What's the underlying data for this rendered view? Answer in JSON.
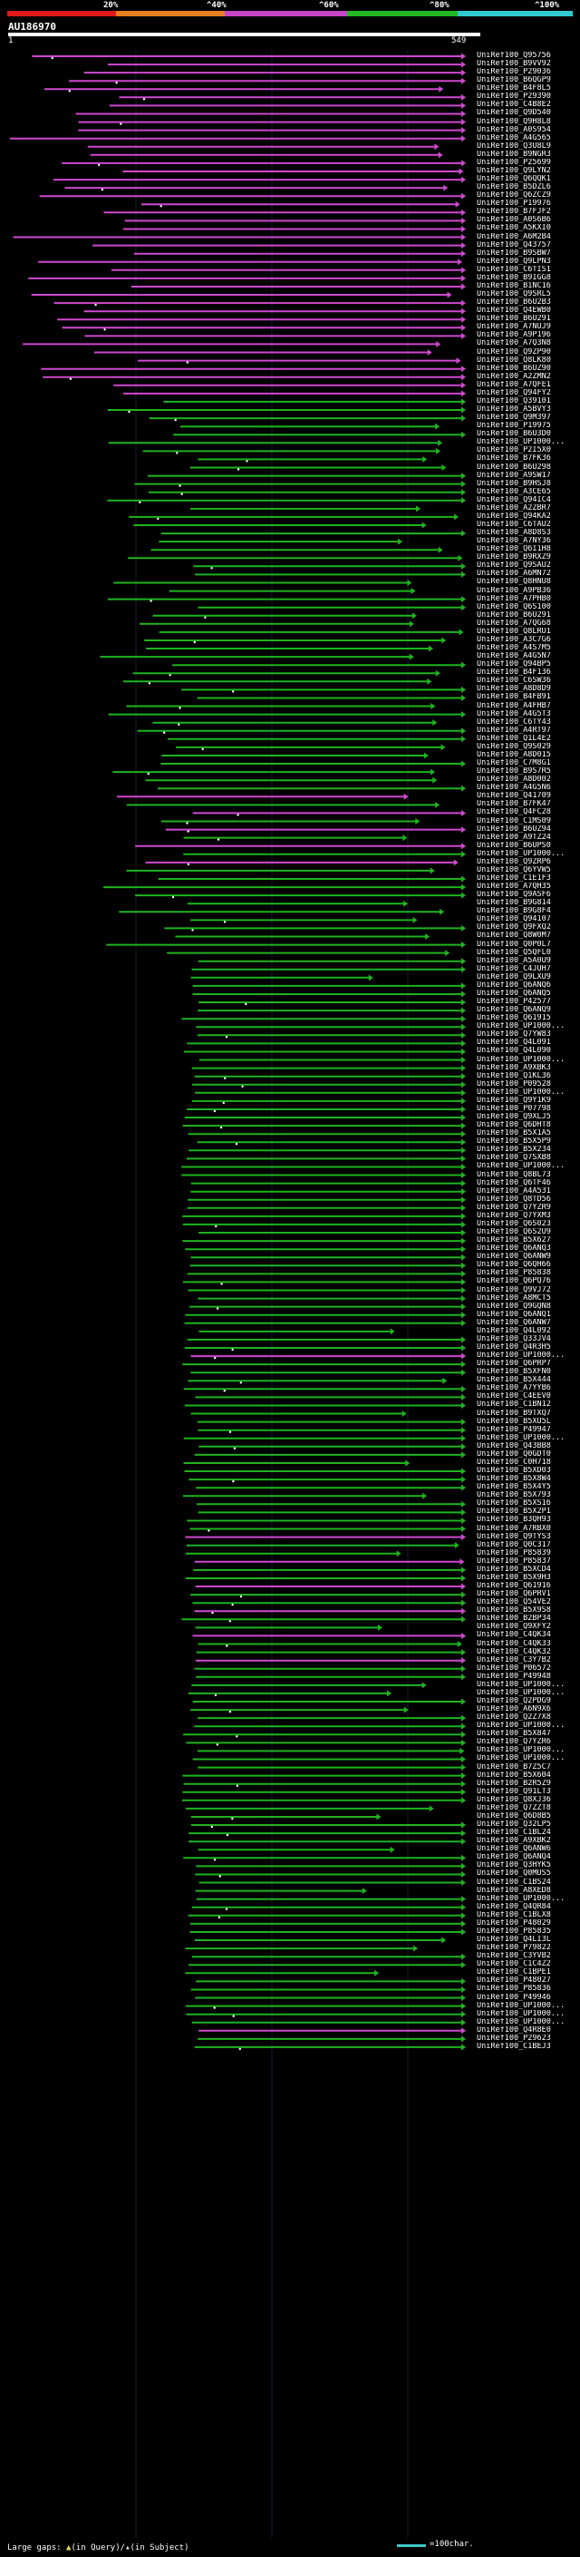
{
  "legend": {
    "labels": [
      "20%",
      "^40%",
      "^60%",
      "^80%",
      "^100%"
    ],
    "colors": [
      "#e01818",
      "#e87f1e",
      "#c844c8",
      "#22b822",
      "#2fcbd0"
    ]
  },
  "query": {
    "name": "AU186970",
    "start": "1",
    "end": "549"
  },
  "colors": {
    "pink": "#d048d0",
    "green": "#1eb41e",
    "background": "#000000"
  },
  "hits": [
    "UniRef100_Q95756",
    "UniRef100_B9VV92",
    "UniRef100_P29036",
    "UniRef100_B6QGP9",
    "UniRef100_B4F8L5",
    "UniRef100_P29390",
    "UniRef100_C4B8E2",
    "UniRef100_Q9D540",
    "UniRef100_Q9H8L8",
    "UniRef100_A0S954",
    "UniRef100_A4G565",
    "UniRef100_Q3U8L9",
    "UniRef100_B9NGR3",
    "UniRef100_P25699",
    "UniRef100_Q9LYN2",
    "UniRef100_Q6QQK1",
    "UniRef100_B5DZL6",
    "UniRef100_Q6ZCZ9",
    "UniRef100_P19976",
    "UniRef100_B7FJF2",
    "UniRef100_A0S6B6",
    "UniRef100_A5KXI0",
    "UniRef100_A6M2B4",
    "UniRef100_Q43757",
    "UniRef100_B9SBW7",
    "UniRef100_Q9LPN3",
    "UniRef100_C6TIS1",
    "UniRef100_B9IGG8",
    "UniRef100_B1NC16",
    "UniRef100_Q9SRL5",
    "UniRef100_B6U2B3",
    "UniRef100_Q4EWB0",
    "UniRef100_B6U291",
    "UniRef100_A7NUJ9",
    "UniRef100_A9P196",
    "UniRef100_A7Q3N8",
    "UniRef100_Q9ZP90",
    "UniRef100_Q8LK80",
    "UniRef100_B6UZ90",
    "UniRef100_A2ZMN2",
    "UniRef100_A7QFE1",
    "UniRef100_Q94FY2",
    "UniRef100_Q39101",
    "UniRef100_A5BVY3",
    "UniRef100_Q9M397",
    "UniRef100_P19975",
    "UniRef100_B6U3D0",
    "UniRef100_UP1000...",
    "UniRef100_P2I5X0",
    "UniRef100_B7FK36",
    "UniRef100_B6U298",
    "UniRef100_A9SW17",
    "UniRef100_B9HSJ8",
    "UniRef100_A3CE65",
    "UniRef100_Q94IC4",
    "UniRef100_A2ZBR7",
    "UniRef100_Q94KA2",
    "UniRef100_C6TAU2",
    "UniRef100_A8D8S3",
    "UniRef100_A7NY36",
    "UniRef100_Q6I1H8",
    "UniRef100_B9RXZ9",
    "UniRef100_Q9SAU2",
    "UniRef100_A6MN72",
    "UniRef100_Q8HNU8",
    "UniRef100_A9PB36",
    "UniRef100_A7PHB0",
    "UniRef100_Q6S100",
    "UniRef100_B6U291",
    "UniRef100_A7QG68",
    "UniRef100_Q8LRU1",
    "UniRef100_A3C7G6",
    "UniRef100_A4S7M5",
    "UniRef100_A4G5N7",
    "UniRef100_Q94BP5",
    "UniRef100_B4F136",
    "UniRef100_C6SW36",
    "UniRef100_A8D8D9",
    "UniRef100_B4FB91",
    "UniRef100_A4FHB7",
    "UniRef100_A4G5T3",
    "UniRef100_C6TY43",
    "UniRef100_A4RT97",
    "UniRef100_Q1L4E2",
    "UniRef100_Q9S029",
    "UniRef100_A8D015",
    "UniRef100_C7M8G1",
    "UniRef100_B9S7R5",
    "UniRef100_A8D002",
    "UniRef100_A4G5N6",
    "UniRef100_Q41709",
    "UniRef100_B7FK47",
    "UniRef100_Q4FC28",
    "UniRef100_C1MS09",
    "UniRef100_B6UZ94",
    "UniRef100_A9TZ24",
    "UniRef100_B6UPS0",
    "UniRef100_UP1000...",
    "UniRef100_Q9ZRP6",
    "UniRef100_Q6YVW5",
    "UniRef100_C1E1F3",
    "UniRef100_A7QH35",
    "UniRef100_Q9ASF6",
    "UniRef100_B9G814",
    "UniRef100_B9G8F4",
    "UniRef100_Q94107",
    "UniRef100_Q9FXQ2",
    "UniRef100_Q8W0M7",
    "UniRef100_Q0P0L7",
    "UniRef100_Q5QFL0",
    "UniRef100_A5A0U9",
    "UniRef100_C4JUH7",
    "UniRef100_Q9LXU9",
    "UniRef100_Q6ANQ6",
    "UniRef100_Q6ANQ5",
    "UniRef100_P42577",
    "UniRef100_Q6ANQ9",
    "UniRef100_Q61915",
    "UniRef100_UP1000...",
    "UniRef100_Q7YW83",
    "UniRef100_Q4L091",
    "UniRef100_Q4L090",
    "UniRef100_UP1000...",
    "UniRef100_A9XBK3",
    "UniRef100_Q1KL36",
    "UniRef100_P09528",
    "UniRef100_UP1000...",
    "UniRef100_Q9Y1K9",
    "UniRef100_P07798",
    "UniRef100_Q9XLJ5",
    "UniRef100_Q6DHT8",
    "UniRef100_B5X1A5",
    "UniRef100_B5X5P9",
    "UniRef100_B5X234",
    "UniRef100_Q7SXB8",
    "UniRef100_UP1000...",
    "UniRef100_Q8BL73",
    "UniRef100_Q6TF46",
    "UniRef100_A4A531",
    "UniRef100_Q8TD56",
    "UniRef100_Q7YZR9",
    "UniRef100_Q7YXM3",
    "UniRef100_Q6S023",
    "UniRef100_Q6S2U9",
    "UniRef100_B5X627",
    "UniRef100_Q6ANQ3",
    "UniRef100_Q6ANW9",
    "UniRef100_Q6QH66",
    "UniRef100_P85838",
    "UniRef100_Q6PQ76",
    "UniRef100_Q9VJ72",
    "UniRef100_A8MCT5",
    "UniRef100_Q9GQN8",
    "UniRef100_Q6ANQ1",
    "UniRef100_Q6ANW7",
    "UniRef100_Q4L092",
    "UniRef100_Q33JV4",
    "UniRef100_Q4R3H5",
    "UniRef100_UP1000...",
    "UniRef100_Q6PRP7",
    "UniRef100_B5XFN0",
    "UniRef100_B5X444",
    "UniRef100_A7YYB6",
    "UniRef100_C4EEV0",
    "UniRef100_C1BN12",
    "UniRef100_B9TXQ7",
    "UniRef100_B5XU5L",
    "UniRef100_P49947",
    "UniRef100_UP1000...",
    "UniRef100_Q43BB8",
    "UniRef100_Q0GDT0",
    "UniRef100_C0H718",
    "UniRef100_B5XD03",
    "UniRef100_B5X8W4",
    "UniRef100_B5X4Y5",
    "UniRef100_B5X793",
    "UniRef100_B5XS16",
    "UniRef100_B5X2P1",
    "UniRef100_B3QH93",
    "UniRef100_A7RBX0",
    "UniRef100_Q9TYS3",
    "UniRef100_Q0C317",
    "UniRef100_P85839",
    "UniRef100_P85837",
    "UniRef100_B5XCD4",
    "UniRef100_B5X9H3",
    "UniRef100_Q61916",
    "UniRef100_Q6PRV1",
    "UniRef100_Q54VE2",
    "UniRef100_B5X9S8",
    "UniRef100_B2BP34",
    "UniRef100_Q9XFY2",
    "UniRef100_C4QK34",
    "UniRef100_C4QK33",
    "UniRef100_C4QK32",
    "UniRef100_C3Y7B2",
    "UniRef100_P06572",
    "UniRef100_P49948",
    "UniRef100_UP1000...",
    "UniRef100_UP1000...",
    "UniRef100_Q2PDG9",
    "UniRef100_A6N9X6",
    "UniRef100_Q2Z7X8",
    "UniRef100_UP1000...",
    "UniRef100_B5X847",
    "UniRef100_Q7YZR6",
    "UniRef100_UP1000...",
    "UniRef100_UP1000...",
    "UniRef100_B7Z5C7",
    "UniRef100_B5X604",
    "UniRef100_B2R5Z9",
    "UniRef100_Q91LT3",
    "UniRef100_Q8XJ36",
    "UniRef100_Q7ZZT8",
    "UniRef100_Q6D8B5",
    "UniRef100_Q32LP5",
    "UniRef100_C1BL24",
    "UniRef100_A9XBK2",
    "UniRef100_Q6ANW6",
    "UniRef100_Q6ANQ4",
    "UniRef100_Q3HYK5",
    "UniRef100_Q0MUS5",
    "UniRef100_C1BS24",
    "UniRef100_A8XED8",
    "UniRef100_UP1000...",
    "UniRef100_Q4QR84",
    "UniRef100_C1BLX8",
    "UniRef100_P48029",
    "UniRef100_P85835",
    "UniRef100_Q4LI3L",
    "UniRef100_P79822",
    "UniRef100_C3YVB2",
    "UniRef100_C1C4Z2",
    "UniRef100_C1BPE1",
    "UniRef100_P48027",
    "UniRef100_P85836",
    "UniRef100_P49946",
    "UniRef100_UP1000...",
    "UniRef100_UP1000...",
    "UniRef100_UP1000...",
    "UniRef100_Q4R8E0",
    "UniRef100_P29623",
    "UniRef100_C1BEJ3"
  ],
  "footer": {
    "large_gaps_prefix": "Large gaps:",
    "in_query": "(in Query)/",
    "in_subject": "(in Subject)",
    "scale_label": "=100char."
  }
}
